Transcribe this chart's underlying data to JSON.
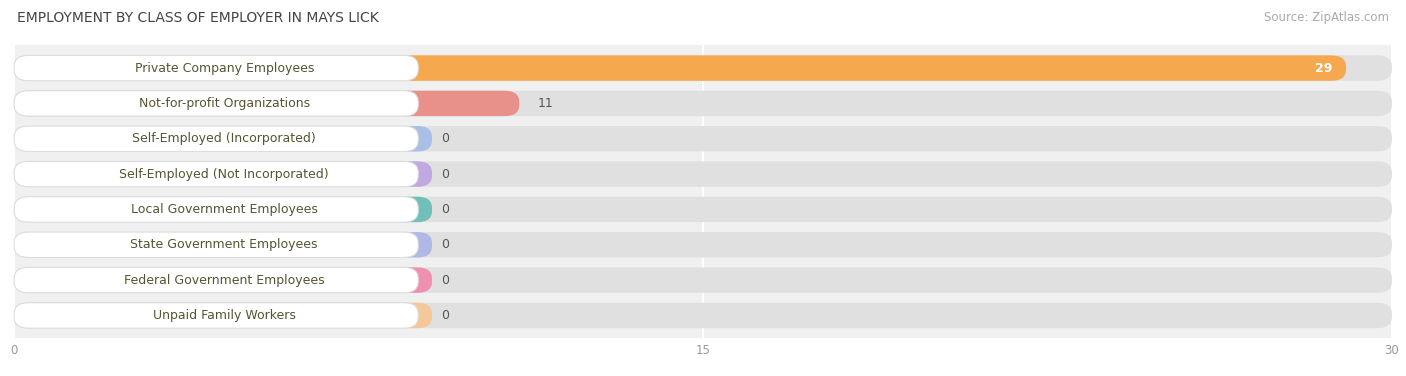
{
  "title": "EMPLOYMENT BY CLASS OF EMPLOYER IN MAYS LICK",
  "source": "Source: ZipAtlas.com",
  "categories": [
    "Private Company Employees",
    "Not-for-profit Organizations",
    "Self-Employed (Incorporated)",
    "Self-Employed (Not Incorporated)",
    "Local Government Employees",
    "State Government Employees",
    "Federal Government Employees",
    "Unpaid Family Workers"
  ],
  "values": [
    29,
    11,
    0,
    0,
    0,
    0,
    0,
    0
  ],
  "bar_colors": [
    "#f5a84e",
    "#e8908a",
    "#aabfe8",
    "#c0a8e0",
    "#70bfb8",
    "#b0b8e8",
    "#f090b0",
    "#f5c89a"
  ],
  "xlim": [
    0,
    30
  ],
  "xticks": [
    0,
    15,
    30
  ],
  "background_color": "#ffffff",
  "plot_bg_color": "#f0f0f0",
  "row_bg_color": "#ffffff",
  "title_fontsize": 10,
  "label_fontsize": 9,
  "value_fontsize": 9,
  "source_fontsize": 8.5,
  "bar_height": 0.72,
  "grid_color": "#ffffff",
  "label_color": "#555533",
  "title_color": "#444444"
}
